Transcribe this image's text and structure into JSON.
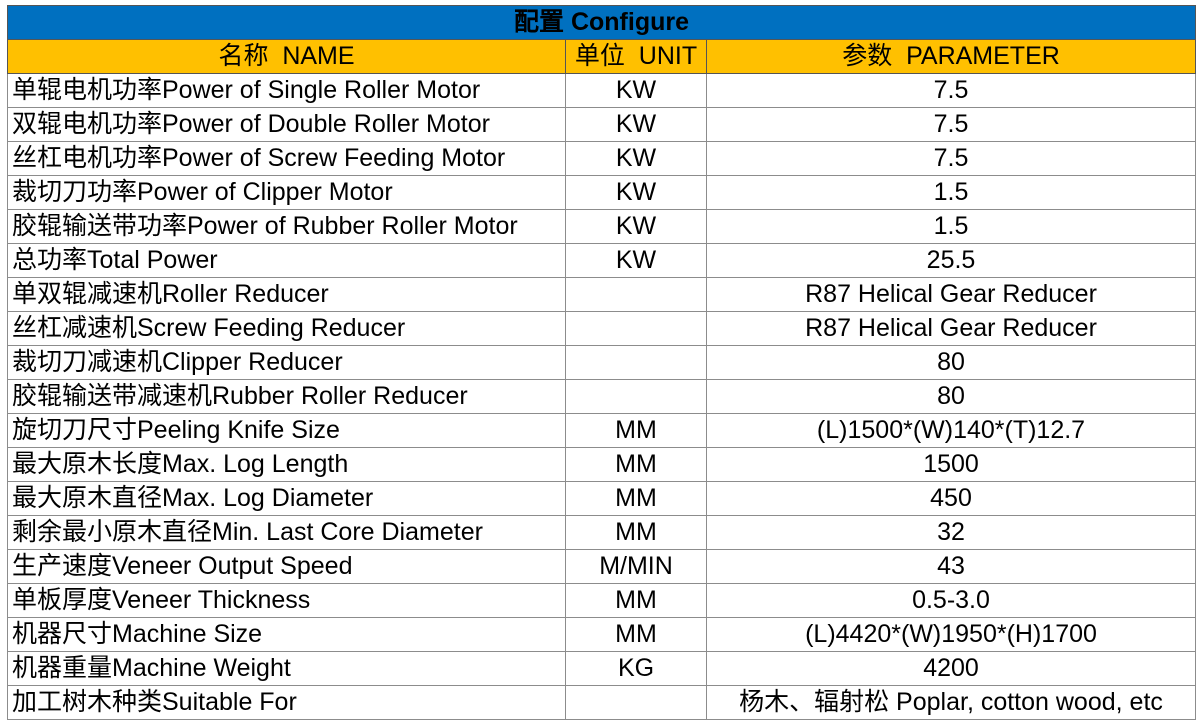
{
  "header": {
    "title": "配置 Configure"
  },
  "table": {
    "columns": [
      "名称  NAME",
      "单位  UNIT",
      "参数  PARAMETER"
    ],
    "rows": [
      {
        "name": "单辊电机功率Power of Single Roller Motor",
        "unit": "KW",
        "parameter": "7.5"
      },
      {
        "name": "双辊电机功率Power of Double Roller Motor",
        "unit": "KW",
        "parameter": "7.5"
      },
      {
        "name": "丝杠电机功率Power of Screw Feeding Motor",
        "unit": "KW",
        "parameter": "7.5"
      },
      {
        "name": "裁切刀功率Power of Clipper Motor",
        "unit": "KW",
        "parameter": "1.5"
      },
      {
        "name": "胶辊输送带功率Power of Rubber Roller Motor",
        "unit": "KW",
        "parameter": "1.5"
      },
      {
        "name": "总功率Total Power",
        "unit": "KW",
        "parameter": "25.5"
      },
      {
        "name": "单双辊减速机Roller Reducer",
        "parameter": "R87 Helical Gear Reducer"
      },
      {
        "name": "丝杠减速机Screw Feeding Reducer",
        "parameter": "R87 Helical Gear Reducer"
      },
      {
        "name": "裁切刀减速机Clipper Reducer",
        "parameter": "80"
      },
      {
        "name": "胶辊输送带减速机Rubber Roller Reducer",
        "parameter": "80"
      },
      {
        "name": "旋切刀尺寸Peeling Knife Size",
        "unit": "MM",
        "parameter": "(L)1500*(W)140*(T)12.7"
      },
      {
        "name": "最大原木长度Max. Log Length",
        "unit": "MM",
        "parameter": "1500"
      },
      {
        "name": "最大原木直径Max. Log Diameter",
        "unit": "MM",
        "parameter": "450"
      },
      {
        "name": "剩余最小原木直径Min. Last Core Diameter",
        "unit": "MM",
        "parameter": "32"
      },
      {
        "name": "生产速度Veneer Output Speed",
        "unit": "M/MIN",
        "parameter": "43"
      },
      {
        "name": "单板厚度Veneer Thickness",
        "unit": "MM",
        "parameter": "0.5-3.0"
      },
      {
        "name": "机器尺寸Machine Size",
        "unit": "MM",
        "parameter": "(L)4420*(W)1950*(H)1700"
      },
      {
        "name": "机器重量Machine Weight",
        "unit": "KG",
        "parameter": "4200"
      },
      {
        "name": "加工树木种类Suitable For",
        "parameter": "杨木、辐射松 Poplar, cotton wood, etc"
      }
    ]
  }
}
